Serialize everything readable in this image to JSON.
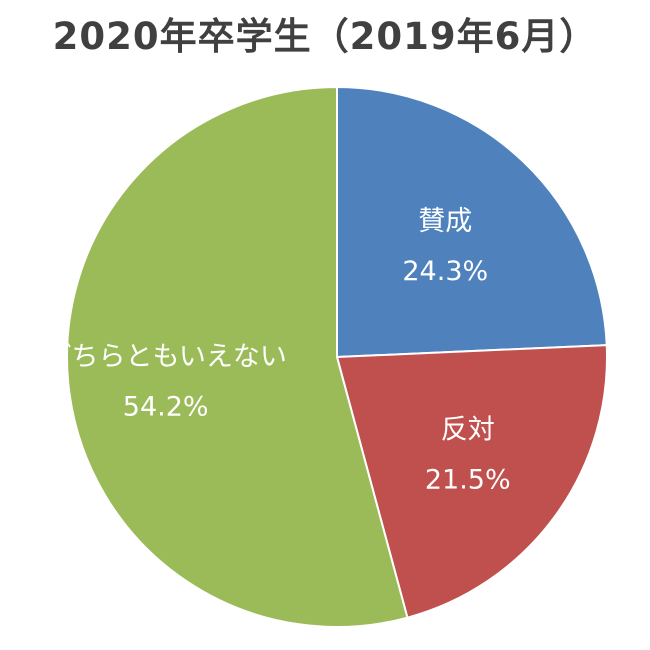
{
  "chart_data": {
    "type": "pie",
    "title": "2020年卒学生（2019年6月）",
    "slices": [
      {
        "label": "賛成",
        "value": 24.3,
        "value_label": "24.3%",
        "color": "#4f81bd"
      },
      {
        "label": "反対",
        "value": 21.5,
        "value_label": "21.5%",
        "color": "#c0504d"
      },
      {
        "label": "どちらともいえない",
        "value": 54.2,
        "value_label": "54.2%",
        "color": "#9bbb59"
      }
    ],
    "start_angle": "12 o'clock",
    "direction": "clockwise",
    "legend": "none"
  }
}
